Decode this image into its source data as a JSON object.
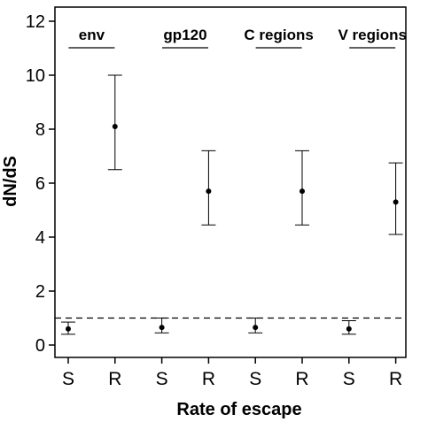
{
  "chart_data": {
    "type": "scatter",
    "xlabel": "Rate of escape",
    "ylabel": "dN/dS",
    "ylim": [
      0,
      12
    ],
    "yticks": [
      "0",
      "2",
      "4",
      "6",
      "8",
      "10",
      "12"
    ],
    "grid": false,
    "legend": "none",
    "categories": [
      "S",
      "R",
      "S",
      "R",
      "S",
      "R",
      "S",
      "R"
    ],
    "groups": [
      {
        "label": "env"
      },
      {
        "label": "gp120"
      },
      {
        "label": "C regions"
      },
      {
        "label": "V regions"
      }
    ],
    "points": [
      {
        "group": "env",
        "category": "S",
        "value": 0.6,
        "lower": 0.4,
        "upper": 0.85
      },
      {
        "group": "env",
        "category": "R",
        "value": 8.1,
        "lower": 6.5,
        "upper": 10.0
      },
      {
        "group": "gp120",
        "category": "S",
        "value": 0.65,
        "lower": 0.45,
        "upper": 1.0
      },
      {
        "group": "gp120",
        "category": "R",
        "value": 5.7,
        "lower": 4.45,
        "upper": 7.2
      },
      {
        "group": "C regions",
        "category": "S",
        "value": 0.65,
        "lower": 0.45,
        "upper": 1.0
      },
      {
        "group": "C regions",
        "category": "R",
        "value": 5.7,
        "lower": 4.45,
        "upper": 7.2
      },
      {
        "group": "V regions",
        "category": "S",
        "value": 0.6,
        "lower": 0.4,
        "upper": 0.9
      },
      {
        "group": "V regions",
        "category": "R",
        "value": 5.3,
        "lower": 4.1,
        "upper": 6.75
      }
    ],
    "reference_line": {
      "value": 1.0,
      "style": "dashed"
    }
  }
}
